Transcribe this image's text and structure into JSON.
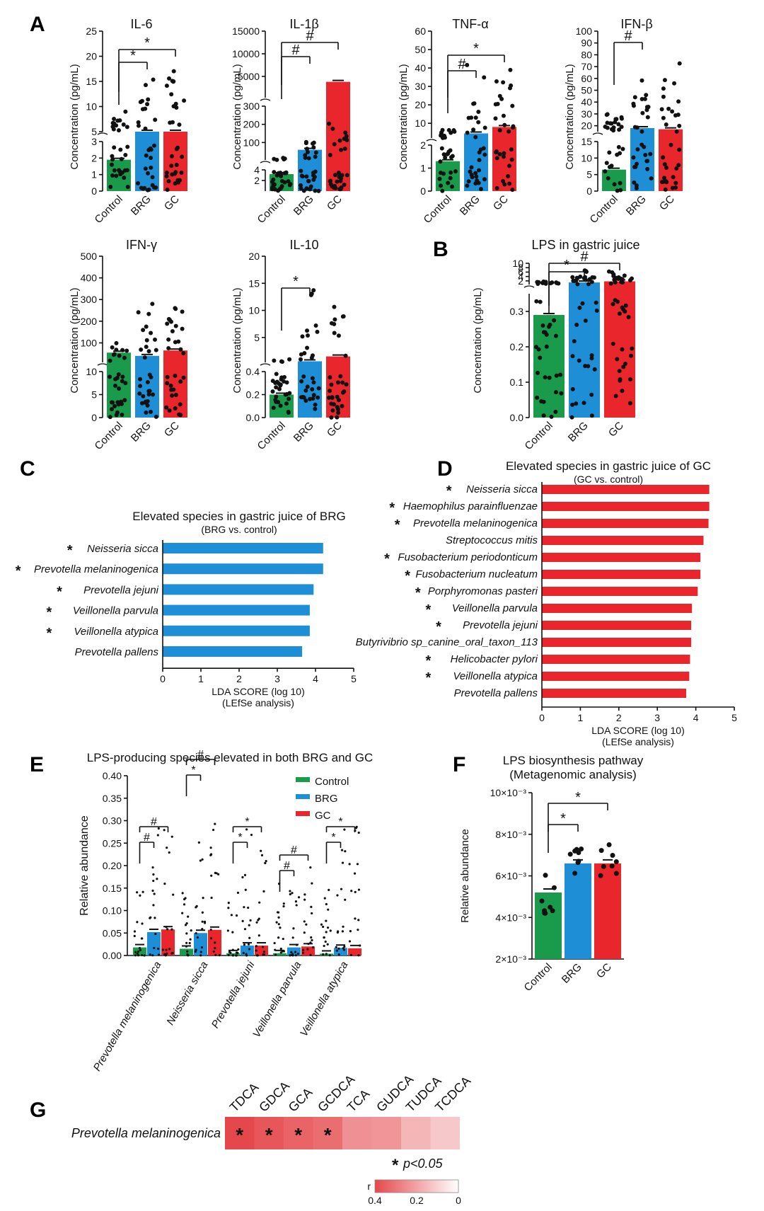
{
  "figure": {
    "colors": {
      "control": "#1a9a4b",
      "brg": "#1e8fd6",
      "gc": "#e8262b",
      "text": "#111111"
    },
    "groups": [
      "Control",
      "BRG",
      "GC"
    ],
    "yaxis_conc": "Concentration (pg/mL)",
    "yaxis_rel": "Relative abundance",
    "panel_labels": [
      "A",
      "B",
      "C",
      "D",
      "E",
      "F",
      "G"
    ]
  },
  "chart_data": [
    {
      "id": "il6",
      "type": "bar",
      "title": "IL-6",
      "ylabel": "Concentration (pg/mL)",
      "categories": [
        "Control",
        "BRG",
        "GC"
      ],
      "values": [
        1.9,
        3.4,
        3.9
      ],
      "upper": {
        "ylim": [
          5,
          25
        ],
        "ticks": [
          "5",
          "10",
          "15",
          "20",
          "25"
        ]
      },
      "lower": {
        "ylim": [
          0,
          3
        ],
        "ticks": [
          "0",
          "1",
          "2",
          "3"
        ]
      },
      "annotations": [
        {
          "from": "Control",
          "to": "BRG",
          "label": "*"
        },
        {
          "from": "Control",
          "to": "GC",
          "label": "*"
        }
      ]
    },
    {
      "id": "il1b",
      "type": "bar",
      "title": "IL-1β",
      "ylabel": "Concentration (pg/mL)",
      "categories": [
        "Control",
        "BRG",
        "GC"
      ],
      "values": [
        3.2,
        60,
        3800
      ],
      "top": {
        "ylim": [
          300,
          15000
        ],
        "ticks": [
          "5000",
          "10000",
          "15000"
        ]
      },
      "upper": {
        "ylim": [
          4,
          300
        ],
        "ticks": [
          "100",
          "200",
          "300"
        ]
      },
      "lower": {
        "ylim": [
          0,
          4
        ],
        "ticks": [
          "2",
          "4"
        ]
      },
      "annotations": [
        {
          "from": "Control",
          "to": "BRG",
          "label": "#"
        },
        {
          "from": "Control",
          "to": "GC",
          "label": "#"
        }
      ]
    },
    {
      "id": "tnfa",
      "type": "bar",
      "title": "TNF-α",
      "ylabel": "Concentration (pg/mL)",
      "categories": [
        "Control",
        "BRG",
        "GC"
      ],
      "values": [
        1.3,
        4.5,
        8
      ],
      "upper": {
        "ylim": [
          2,
          60
        ],
        "ticks": [
          "10",
          "20",
          "30",
          "40",
          "50",
          "60"
        ]
      },
      "lower": {
        "ylim": [
          0,
          2
        ],
        "ticks": [
          "0",
          "1",
          "2"
        ]
      },
      "annotations": [
        {
          "from": "Control",
          "to": "BRG",
          "label": "#"
        },
        {
          "from": "Control",
          "to": "GC",
          "label": "*"
        }
      ]
    },
    {
      "id": "ifnb",
      "type": "bar",
      "title": "IFN-β",
      "ylabel": "Concentration (pg/mL)",
      "categories": [
        "Control",
        "BRG",
        "GC"
      ],
      "values": [
        6.5,
        18,
        17
      ],
      "upper": {
        "ylim": [
          15,
          100
        ],
        "ticks": [
          "20",
          "30",
          "40",
          "50",
          "60",
          "70",
          "80",
          "90",
          "100"
        ]
      },
      "lower": {
        "ylim": [
          0,
          15
        ],
        "ticks": [
          "0",
          "5",
          "10",
          "15"
        ]
      },
      "annotations": [
        {
          "from": "Control",
          "to": "BRG",
          "label": "#"
        }
      ]
    },
    {
      "id": "ifng",
      "type": "bar",
      "title": "IFN-γ",
      "ylabel": "Concentration (pg/mL)",
      "categories": [
        "Control",
        "BRG",
        "GC"
      ],
      "values": [
        55,
        40,
        65
      ],
      "upper": {
        "ylim": [
          10,
          500
        ],
        "ticks": [
          "100",
          "200",
          "300",
          "400",
          "500"
        ]
      },
      "lower": {
        "ylim": [
          0,
          10
        ],
        "ticks": [
          "0",
          "5",
          "10"
        ]
      },
      "annotations": []
    },
    {
      "id": "il10",
      "type": "bar",
      "title": "IL-10",
      "ylabel": "Concentration (pg/mL)",
      "categories": [
        "Control",
        "BRG",
        "GC"
      ],
      "values": [
        0.2,
        0.6,
        1.5
      ],
      "upper": {
        "ylim": [
          0.4,
          20
        ],
        "ticks": [
          "5",
          "10",
          "15",
          "20"
        ]
      },
      "lower": {
        "ylim": [
          0,
          0.4
        ],
        "ticks": [
          "0.0",
          "0.2",
          "0.4"
        ]
      },
      "annotations": [
        {
          "from": "Control",
          "to": "BRG",
          "label": "*"
        }
      ]
    },
    {
      "id": "lps",
      "type": "bar",
      "title": "LPS in gastric juice",
      "ylabel": "Concentration (pg/mL)",
      "categories": [
        "Control",
        "BRG",
        "GC"
      ],
      "values": [
        0.29,
        1.3,
        1.8
      ],
      "upper": {
        "ylim": [
          0.35,
          10
        ],
        "ticks": [
          "2",
          "4",
          "6",
          "8",
          "10"
        ]
      },
      "lower": {
        "ylim": [
          0,
          0.35
        ],
        "ticks": [
          "0.0",
          "0.1",
          "0.2",
          "0.3"
        ]
      },
      "annotations": [
        {
          "from": "Control",
          "to": "BRG",
          "label": "*"
        },
        {
          "from": "Control",
          "to": "GC",
          "label": "#"
        }
      ]
    },
    {
      "id": "lda_brg",
      "type": "bar",
      "orientation": "horizontal",
      "title": "Elevated species  in gastric juice of BRG",
      "subtitle": "(BRG vs. control)",
      "xlabel": "LDA SCORE (log 10)",
      "xlabel2": "(LEfSe analysis)",
      "xlim": [
        0,
        5
      ],
      "xticks": [
        "0",
        "1",
        "2",
        "3",
        "4",
        "5"
      ],
      "categories": [
        "Neisseria sicca",
        "Prevotella melaninogenica",
        "Prevotella jejuni",
        "Veillonella parvula",
        "Veillonella atypica",
        "Prevotella pallens"
      ],
      "starred": [
        true,
        true,
        true,
        true,
        true,
        false
      ],
      "values": [
        4.2,
        4.2,
        3.95,
        3.85,
        3.85,
        3.65
      ]
    },
    {
      "id": "lda_gc",
      "type": "bar",
      "orientation": "horizontal",
      "title": "Elevated species  in gastric juice of GC",
      "subtitle": "(GC vs. control)",
      "xlabel": "LDA SCORE (log 10)",
      "xlabel2": "(LEfSe analysis)",
      "xlim": [
        0,
        5
      ],
      "xticks": [
        "0",
        "1",
        "2",
        "3",
        "4",
        "5"
      ],
      "categories": [
        "Neisseria sicca",
        "Haemophilus parainfluenzae",
        "Prevotella melaninogenica",
        "Streptococcus mitis",
        "Fusobacterium periodonticum",
        "Fusobacterium nucleatum",
        "Porphyromonas pasteri",
        "Veillonella parvula",
        "Prevotella jejuni",
        "Butyrivibrio sp_canine_oral_taxon_113",
        "Helicobacter pylori",
        "Veillonella atypica",
        "Prevotella pallens"
      ],
      "starred": [
        true,
        true,
        true,
        false,
        true,
        true,
        true,
        true,
        true,
        false,
        true,
        true,
        false
      ],
      "values": [
        4.35,
        4.35,
        4.33,
        4.2,
        4.12,
        4.12,
        4.05,
        3.9,
        3.88,
        3.88,
        3.85,
        3.83,
        3.75
      ]
    },
    {
      "id": "lps_species",
      "type": "bar",
      "title": "LPS-producing species elevated in both BRG and GC",
      "ylabel": "Relative abundance",
      "ylim": [
        0,
        0.4
      ],
      "yticks": [
        "0.00",
        "0.05",
        "0.10",
        "0.15",
        "0.20",
        "0.25",
        "0.30",
        "0.35",
        "0.40"
      ],
      "categories": [
        "Prevotella melaninogenica",
        "Neisseria sicca",
        "Prevotella jejuni",
        "Veillonella parvula",
        "Veillonella atypica"
      ],
      "legend": [
        "Control",
        "BRG",
        "GC"
      ],
      "series": [
        {
          "name": "Control",
          "values": [
            0.018,
            0.015,
            0.005,
            0.005,
            0.004
          ]
        },
        {
          "name": "BRG",
          "values": [
            0.052,
            0.05,
            0.022,
            0.018,
            0.017
          ]
        },
        {
          "name": "GC",
          "values": [
            0.058,
            0.057,
            0.022,
            0.02,
            0.016
          ]
        }
      ],
      "annotations": [
        {
          "category": "Prevotella melaninogenica",
          "brg": "#",
          "gc": "#"
        },
        {
          "category": "Neisseria sicca",
          "brg": "*",
          "gc": "#"
        },
        {
          "category": "Prevotella jejuni",
          "brg": "*",
          "gc": "*"
        },
        {
          "category": "Veillonella parvula",
          "brg": "#",
          "gc": "#"
        },
        {
          "category": "Veillonella atypica",
          "brg": "*",
          "gc": "*"
        }
      ]
    },
    {
      "id": "lps_pathway",
      "type": "bar",
      "title": "LPS biosynthesis pathway",
      "subtitle": "(Metagenomic analysis)",
      "ylabel": "Relative abundance",
      "ylim": [
        0.002,
        0.01
      ],
      "yticks": [
        "2×10⁻³",
        "4×10⁻³",
        "6×10⁻³",
        "8×10⁻³",
        "10×10⁻³"
      ],
      "categories": [
        "Control",
        "BRG",
        "GC"
      ],
      "values": [
        0.0052,
        0.0066,
        0.0066
      ],
      "annotations": [
        {
          "from": "Control",
          "to": "BRG",
          "label": "*"
        },
        {
          "from": "Control",
          "to": "GC",
          "label": "*"
        }
      ]
    },
    {
      "id": "heatmap",
      "type": "heatmap",
      "row": "Prevotella melaninogenica",
      "columns": [
        "TDCA",
        "GDCA",
        "GCA",
        "GCDCA",
        "TCA",
        "GUDCA",
        "TUDCA",
        "TCDCA"
      ],
      "r_values": [
        0.4,
        0.37,
        0.34,
        0.32,
        0.24,
        0.23,
        0.16,
        0.12
      ],
      "significant": [
        true,
        true,
        true,
        true,
        false,
        false,
        false,
        false
      ],
      "note_star": "*",
      "note_text": "p<0.05",
      "legend_label": "r",
      "legend_ticks": [
        "0.4",
        "0.2",
        "0"
      ]
    }
  ]
}
